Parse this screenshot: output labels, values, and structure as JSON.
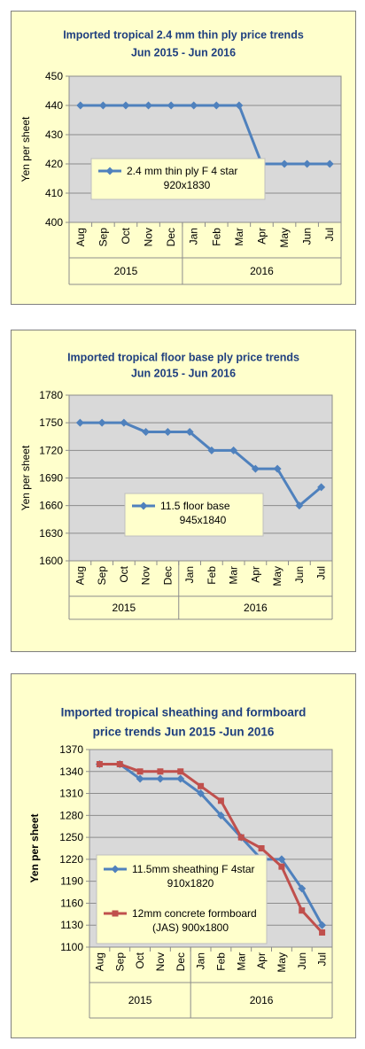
{
  "chart_data": [
    {
      "type": "line",
      "title_lines": [
        "Imported tropical 2.4 mm thin ply price trends",
        "Jun 2015 - Jun 2016"
      ],
      "ylabel": "Yen per sheet",
      "ylim": [
        400,
        450
      ],
      "yticks": [
        400,
        410,
        420,
        430,
        440,
        450
      ],
      "categories": [
        "Aug",
        "Sep",
        "Oct",
        "Nov",
        "Dec",
        "Jan",
        "Feb",
        "Mar",
        "Apr",
        "May",
        "Jun",
        "Jul"
      ],
      "groups": [
        {
          "label": "2015",
          "start": 0,
          "end": 4
        },
        {
          "label": "2016",
          "start": 5,
          "end": 11
        }
      ],
      "grid": "horizontal",
      "legend_position": "center-left",
      "series": [
        {
          "name_lines": [
            "2.4 mm thin ply F 4 star",
            "920x1830"
          ],
          "values": [
            440,
            440,
            440,
            440,
            440,
            440,
            440,
            440,
            420,
            420,
            420,
            420
          ],
          "color": "#4f81bd",
          "marker": "diamond"
        }
      ]
    },
    {
      "type": "line",
      "title_lines": [
        "Imported tropical floor base ply price trends",
        "Jun 2015 - Jun 2016"
      ],
      "ylabel": "Yen per sheet",
      "ylim": [
        1600,
        1780
      ],
      "yticks": [
        1600,
        1630,
        1660,
        1690,
        1720,
        1750,
        1780
      ],
      "categories": [
        "Aug",
        "Sep",
        "Oct",
        "Nov",
        "Dec",
        "Jan",
        "Feb",
        "Mar",
        "Apr",
        "May",
        "Jun",
        "Jul"
      ],
      "groups": [
        {
          "label": "2015",
          "start": 0,
          "end": 4
        },
        {
          "label": "2016",
          "start": 5,
          "end": 11
        }
      ],
      "grid": "horizontal",
      "legend_position": "bottom-center",
      "series": [
        {
          "name_lines": [
            "11.5 floor base",
            "945x1840"
          ],
          "values": [
            1750,
            1750,
            1750,
            1740,
            1740,
            1740,
            1720,
            1720,
            1700,
            1700,
            1660,
            1680
          ],
          "color": "#4f81bd",
          "marker": "diamond"
        }
      ]
    },
    {
      "type": "line",
      "title_lines": [
        "Imported tropical sheathing and formboard",
        "price trends Jun 2015 -Jun 2016"
      ],
      "ylabel": "Yen per sheet",
      "ylim": [
        1100,
        1370
      ],
      "yticks": [
        1100,
        1130,
        1160,
        1190,
        1220,
        1250,
        1280,
        1310,
        1340,
        1370
      ],
      "categories": [
        "Aug",
        "Sep",
        "Oct",
        "Nov",
        "Dec",
        "Jan",
        "Feb",
        "Mar",
        "Apr",
        "May",
        "Jun",
        "Jul"
      ],
      "groups": [
        {
          "label": "2015",
          "start": 0,
          "end": 4
        },
        {
          "label": "2016",
          "start": 5,
          "end": 11
        }
      ],
      "grid": "horizontal",
      "legend_position": "bottom-left",
      "series": [
        {
          "name_lines": [
            "11.5mm sheathing F 4star",
            "910x1820"
          ],
          "values": [
            1350,
            1350,
            1330,
            1330,
            1330,
            1310,
            1280,
            1250,
            1220,
            1220,
            1180,
            1130
          ],
          "color": "#4f81bd",
          "marker": "diamond"
        },
        {
          "name_lines": [
            "12mm concrete formboard",
            "(JAS) 900x1800"
          ],
          "values": [
            1350,
            1350,
            1340,
            1340,
            1340,
            1320,
            1300,
            1250,
            1235,
            1210,
            1150,
            1120
          ],
          "color": "#c0504d",
          "marker": "square"
        }
      ]
    }
  ]
}
